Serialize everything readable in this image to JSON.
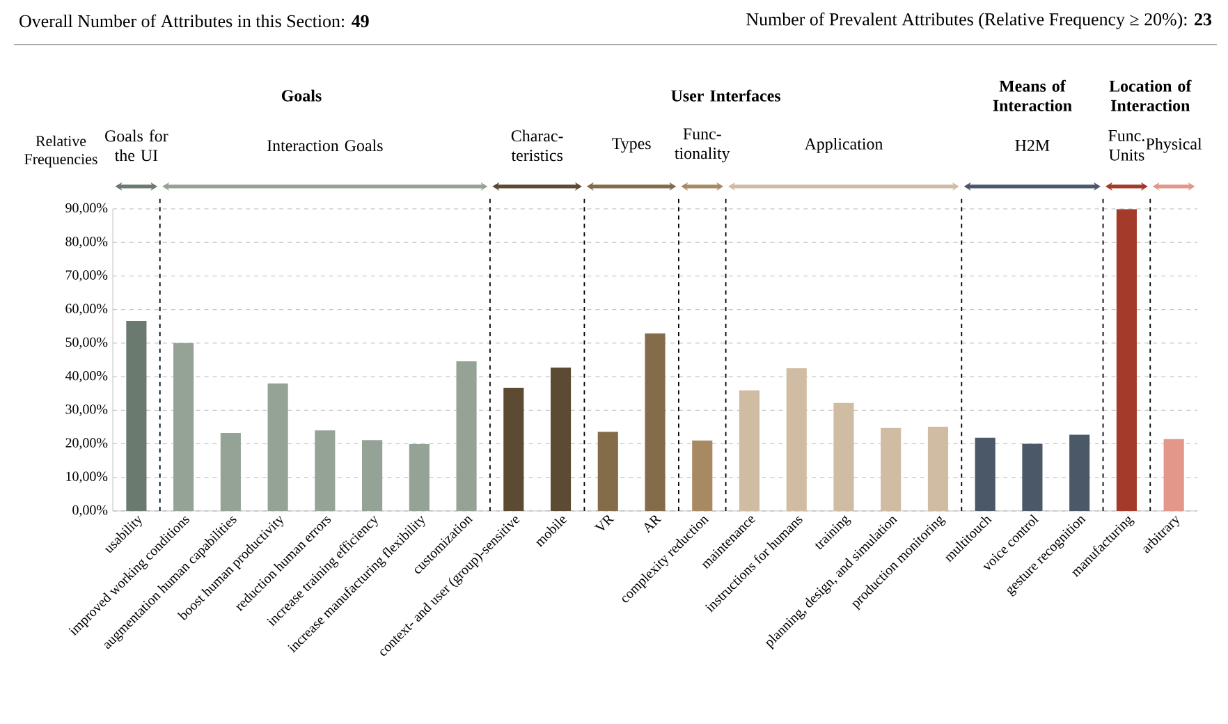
{
  "chart_data": {
    "type": "bar",
    "title": "Overall Number of Attributes in this Section: **49**",
    "subtitle": "Number of  Prevalent Attributes  (Relative Frequency ≥ 20%): **23**",
    "ylabel": "Relative Frequencies",
    "categories": [
      "usability",
      "improved working conditions",
      "augmentation human capabilities",
      "boost human productivity",
      "reduction human errors",
      "increase training efficiency",
      "increase manufacturing flexibility",
      "customization",
      "context- and user (group)-sensitive",
      "mobile",
      "VR",
      "AR",
      "complexity reduction",
      "maintenance",
      "instructions for humans",
      "training",
      "planning, design, and simulation",
      "production monitoring",
      "multitouch",
      "voice control",
      "gesture recognition",
      "manufacturing",
      "arbitrary"
    ],
    "values": [
      56.6,
      50.0,
      23.2,
      38.0,
      24.0,
      21.1,
      19.9,
      44.6,
      36.7,
      42.7,
      23.6,
      52.9,
      21.0,
      35.9,
      42.5,
      32.2,
      24.7,
      25.1,
      21.8,
      20.0,
      22.7,
      89.9,
      21.4
    ],
    "colors": [
      "#6a7a6e",
      "#94a396",
      "#94a396",
      "#94a396",
      "#94a396",
      "#94a396",
      "#94a396",
      "#94a396",
      "#5c4a32",
      "#5c4a32",
      "#846b4a",
      "#846b4a",
      "#a88a62",
      "#cfbca2",
      "#cfbca2",
      "#cfbca2",
      "#cfbca2",
      "#cfbca2",
      "#4b5868",
      "#4b5868",
      "#4b5868",
      "#a33a2a",
      "#e3968a"
    ],
    "ylim": [
      0,
      90
    ],
    "yticks": [
      {
        "value": 0,
        "label": "0,00%"
      },
      {
        "value": 10,
        "label": "10,00%"
      },
      {
        "value": 20,
        "label": "20,00%"
      },
      {
        "value": 30,
        "label": "30,00%"
      },
      {
        "value": 40,
        "label": "40,00%"
      },
      {
        "value": 50,
        "label": "50,00%"
      },
      {
        "value": 60,
        "label": "60,00%"
      },
      {
        "value": 70,
        "label": "70,00%"
      },
      {
        "value": 80,
        "label": "80,00%"
      },
      {
        "value": 90,
        "label": "90,00%"
      }
    ],
    "grid": "y",
    "annotations": [
      "Goals for the UI",
      "Interaction Goals",
      "Charac- teristics",
      "Types",
      "Func- tionality",
      "Application",
      "H2M",
      "Func. Units",
      "Physical",
      "Goals",
      "User Interfaces",
      "Means of Interaction",
      "Location of Interaction"
    ]
  }
}
